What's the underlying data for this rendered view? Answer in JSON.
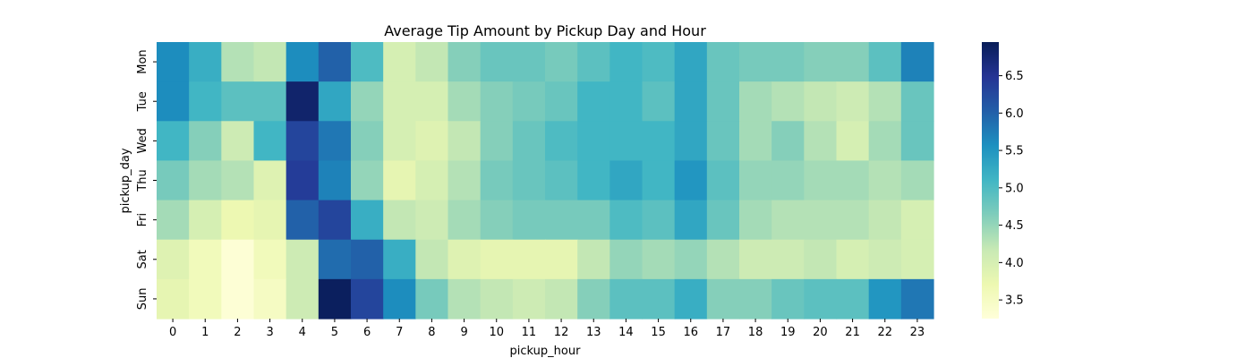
{
  "chart_data": {
    "type": "heatmap",
    "title": "Average Tip Amount by Pickup Day and Hour",
    "xlabel": "pickup_hour",
    "ylabel": "pickup_day",
    "x_categories": [
      "0",
      "1",
      "2",
      "3",
      "4",
      "5",
      "6",
      "7",
      "8",
      "9",
      "10",
      "11",
      "12",
      "13",
      "14",
      "15",
      "16",
      "17",
      "18",
      "19",
      "20",
      "21",
      "22",
      "23"
    ],
    "y_categories": [
      "Mon",
      "Tue",
      "Wed",
      "Thu",
      "Fri",
      "Sat",
      "Sun"
    ],
    "values": [
      [
        5.6,
        5.2,
        4.3,
        4.2,
        5.6,
        6.0,
        5.0,
        4.0,
        4.2,
        4.6,
        4.8,
        4.8,
        4.7,
        4.9,
        5.1,
        5.0,
        5.3,
        4.8,
        4.7,
        4.7,
        4.6,
        4.6,
        4.9,
        5.7
      ],
      [
        5.6,
        5.1,
        4.9,
        4.9,
        6.8,
        5.3,
        4.5,
        4.0,
        4.0,
        4.4,
        4.6,
        4.7,
        4.8,
        5.1,
        5.1,
        4.9,
        5.3,
        4.8,
        4.4,
        4.3,
        4.2,
        4.1,
        4.3,
        4.8
      ],
      [
        5.1,
        4.6,
        4.1,
        5.1,
        6.3,
        5.8,
        4.6,
        4.0,
        3.9,
        4.2,
        4.6,
        4.8,
        5.0,
        5.1,
        5.1,
        5.1,
        5.3,
        4.8,
        4.4,
        4.6,
        4.3,
        4.0,
        4.4,
        4.8
      ],
      [
        4.7,
        4.4,
        4.3,
        3.9,
        6.4,
        5.7,
        4.5,
        3.8,
        4.0,
        4.3,
        4.7,
        4.8,
        4.9,
        5.1,
        5.3,
        5.1,
        5.5,
        4.9,
        4.5,
        4.5,
        4.4,
        4.4,
        4.3,
        4.4
      ],
      [
        4.4,
        4.0,
        3.7,
        3.8,
        6.0,
        6.3,
        5.2,
        4.2,
        4.1,
        4.4,
        4.6,
        4.7,
        4.7,
        4.7,
        5.0,
        4.9,
        5.3,
        4.8,
        4.4,
        4.3,
        4.3,
        4.3,
        4.2,
        4.0
      ],
      [
        3.9,
        3.6,
        3.3,
        3.6,
        4.1,
        5.9,
        6.0,
        5.2,
        4.2,
        3.9,
        3.8,
        3.8,
        3.8,
        4.2,
        4.5,
        4.4,
        4.5,
        4.3,
        4.1,
        4.1,
        4.2,
        4.0,
        4.1,
        4.0
      ],
      [
        3.8,
        3.6,
        3.3,
        3.5,
        4.1,
        6.9,
        6.3,
        5.6,
        4.7,
        4.3,
        4.2,
        4.1,
        4.2,
        4.6,
        4.9,
        4.9,
        5.2,
        4.6,
        4.6,
        4.8,
        4.9,
        4.9,
        5.5,
        5.8
      ]
    ],
    "colormap": "YlGnBu",
    "colorbar": {
      "min": 3.25,
      "max": 6.95,
      "ticks": [
        "3.5",
        "4.0",
        "4.5",
        "5.0",
        "5.5",
        "6.0",
        "6.5"
      ]
    },
    "grid": false,
    "legend": "none"
  }
}
